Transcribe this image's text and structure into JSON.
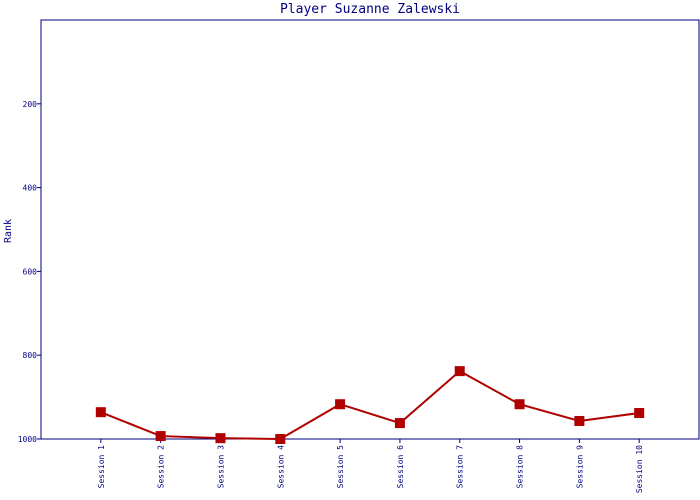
{
  "chart_data": {
    "type": "line",
    "title": "Player Suzanne Zalewski",
    "y_label": "Rank",
    "categories": [
      "Session 1",
      "Session 2",
      "Session 3",
      "Session 4",
      "Session 5",
      "Session 6",
      "Session 7",
      "Session 8",
      "Session 9",
      "Session 10"
    ],
    "series": [
      {
        "color": "#b00000",
        "values": [
          936,
          993,
          998,
          1000,
          917,
          962,
          838,
          917,
          957,
          938
        ]
      }
    ],
    "ylim": [
      0,
      1000
    ],
    "y_inverted": true,
    "yticks": [
      200,
      400,
      600,
      800,
      1000
    ],
    "grid": false
  }
}
